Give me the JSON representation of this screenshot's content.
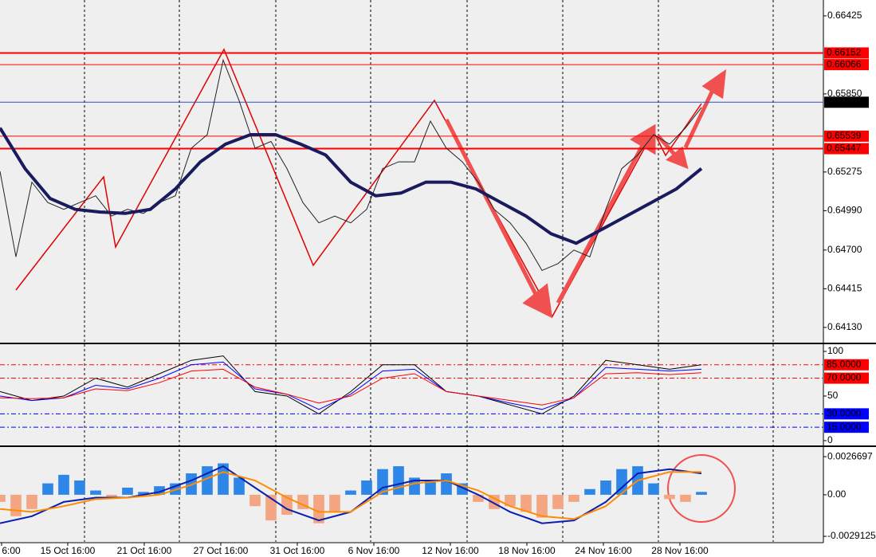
{
  "chart_data": [
    {
      "type": "line",
      "ylim": [
        0.64018,
        0.66542
      ],
      "yticks": [
        0.66425,
        {
          "value": 0.6585,
          "label": "0.65850"
        },
        0.65275,
        {
          "value": 0.6499,
          "label": "0.64990"
        },
        {
          "value": 0.647,
          "label": "0.64700"
        },
        0.64415,
        {
          "value": 0.6413,
          "label": "0.64130"
        }
      ],
      "levels": [
        {
          "value": 0.66152,
          "color": "#ff0000"
        },
        {
          "value": 0.66066,
          "color": "#ff0000"
        },
        {
          "value": 0.65789,
          "color": "#000000"
        },
        {
          "value": 0.65539,
          "color": "#ff0000"
        },
        {
          "value": 0.65447,
          "color": "#ff0000"
        }
      ],
      "series": [
        {
          "color": "#222222",
          "values": [
            0.6528,
            0.6465,
            0.652,
            0.6505,
            0.65,
            0.6505,
            0.651,
            0.6495,
            0.65,
            0.6497,
            0.6505,
            0.651,
            0.6545,
            0.6555,
            0.661,
            0.658,
            0.6545,
            0.655,
            0.653,
            0.6505,
            0.649,
            0.6495,
            0.649,
            0.65,
            0.653,
            0.6535,
            0.6535,
            0.6565,
            0.6545,
            0.6535,
            0.652,
            0.65,
            0.649,
            0.6475,
            0.6455,
            0.646,
            0.647,
            0.6465,
            0.65,
            0.653,
            0.654,
            0.6555,
            0.6548,
            0.656,
            0.6575
          ]
        },
        {
          "color": "#1a1a5e",
          "values": [
            0.656,
            0.653,
            0.6508,
            0.65,
            0.6498,
            0.6497,
            0.65,
            0.6515,
            0.6535,
            0.6548,
            0.6555,
            0.6555,
            0.6548,
            0.654,
            0.652,
            0.651,
            0.6512,
            0.652,
            0.652,
            0.6515,
            0.6505,
            0.6495,
            0.6482,
            0.6475,
            0.6485,
            0.6495,
            0.6505,
            0.6515,
            0.653
          ]
        }
      ]
    },
    {
      "type": "line",
      "ylim": [
        -4.5,
        108
      ],
      "yticks": [
        0,
        50,
        100
      ],
      "levels": [
        {
          "value": 85,
          "label": "85.0000",
          "color": "#ff0000"
        },
        {
          "value": 70,
          "label": "70.0000",
          "color": "#ff0000"
        },
        {
          "value": 30,
          "label": "30.0000",
          "color": "#0000ff"
        },
        {
          "value": 15,
          "label": "15.0000",
          "color": "#0000ff"
        }
      ],
      "series": [
        {
          "color": "#000000",
          "values": [
            55,
            45,
            50,
            70,
            60,
            75,
            90,
            95,
            55,
            50,
            30,
            55,
            85,
            85,
            55,
            50,
            40,
            30,
            50,
            90,
            85,
            80,
            85
          ]
        },
        {
          "color": "#0000ff",
          "values": [
            50,
            45,
            48,
            62,
            58,
            70,
            85,
            88,
            58,
            52,
            35,
            52,
            78,
            80,
            55,
            50,
            42,
            35,
            48,
            82,
            80,
            78,
            80
          ]
        },
        {
          "color": "#ff0000",
          "values": [
            48,
            47,
            48,
            58,
            56,
            65,
            78,
            80,
            60,
            52,
            42,
            50,
            70,
            75,
            55,
            50,
            45,
            40,
            48,
            75,
            76,
            74,
            76
          ]
        }
      ]
    },
    {
      "type": "macd",
      "ylim": [
        -0.0033,
        0.00329
      ],
      "yticks": [
        {
          "value": 0.0026697,
          "label": "0.0026697"
        },
        {
          "value": 0,
          "label": "0.00"
        },
        {
          "value": -0.0029125,
          "label": "-0.0029125"
        }
      ],
      "histogram": {
        "up_color": "#2e86e8",
        "down_color": "#f4a582",
        "values": [
          -0.0005,
          -0.0015,
          -0.001,
          0.0008,
          0.0014,
          0.001,
          0.0003,
          -0.0002,
          0.0005,
          0.0002,
          0.0006,
          0.0008,
          0.0015,
          0.002,
          0.0022,
          0.0012,
          -0.0008,
          -0.0018,
          -0.0014,
          -0.001,
          -0.002,
          -0.0012,
          0.0003,
          0.001,
          0.0018,
          0.002,
          0.0012,
          0.001,
          0.0015,
          0.0008,
          -0.0005,
          -0.001,
          -0.0008,
          -0.0012,
          -0.0016,
          -0.001,
          -0.0005,
          0.0004,
          0.001,
          0.0018,
          0.002,
          0.0008,
          -0.0003,
          -0.0005,
          0.0002
        ]
      },
      "series": [
        {
          "color": "#0a1fb0",
          "values": [
            -0.002,
            -0.0015,
            -0.0005,
            -0.0002,
            -0.0002,
            0.0002,
            0.001,
            0.002,
            0.0005,
            -0.001,
            -0.0018,
            -0.0012,
            0.0005,
            0.001,
            0.001,
            0,
            -0.0012,
            -0.002,
            -0.0018,
            -0.0005,
            0.0015,
            0.0018,
            0.0015
          ]
        },
        {
          "color": "#ff8c00",
          "values": [
            -0.001,
            -0.0012,
            -0.0008,
            -0.0003,
            -0.0002,
            0,
            0.0007,
            0.0016,
            0.001,
            -0.0002,
            -0.0012,
            -0.0012,
            0.0002,
            0.0008,
            0.001,
            0.0003,
            -0.0008,
            -0.0015,
            -0.0017,
            -0.0008,
            0.001,
            0.0016,
            0.0016
          ]
        }
      ]
    }
  ],
  "time_axis": {
    "labels": [
      "6:00",
      "15 Oct 16:00",
      "21 Oct 16:00",
      "27 Oct 16:00",
      "31 Oct 16:00",
      "6 Nov 16:00",
      "12 Nov 16:00",
      "18 Nov 16:00",
      "24 Nov 16:00",
      "28 Nov 16:00"
    ]
  }
}
